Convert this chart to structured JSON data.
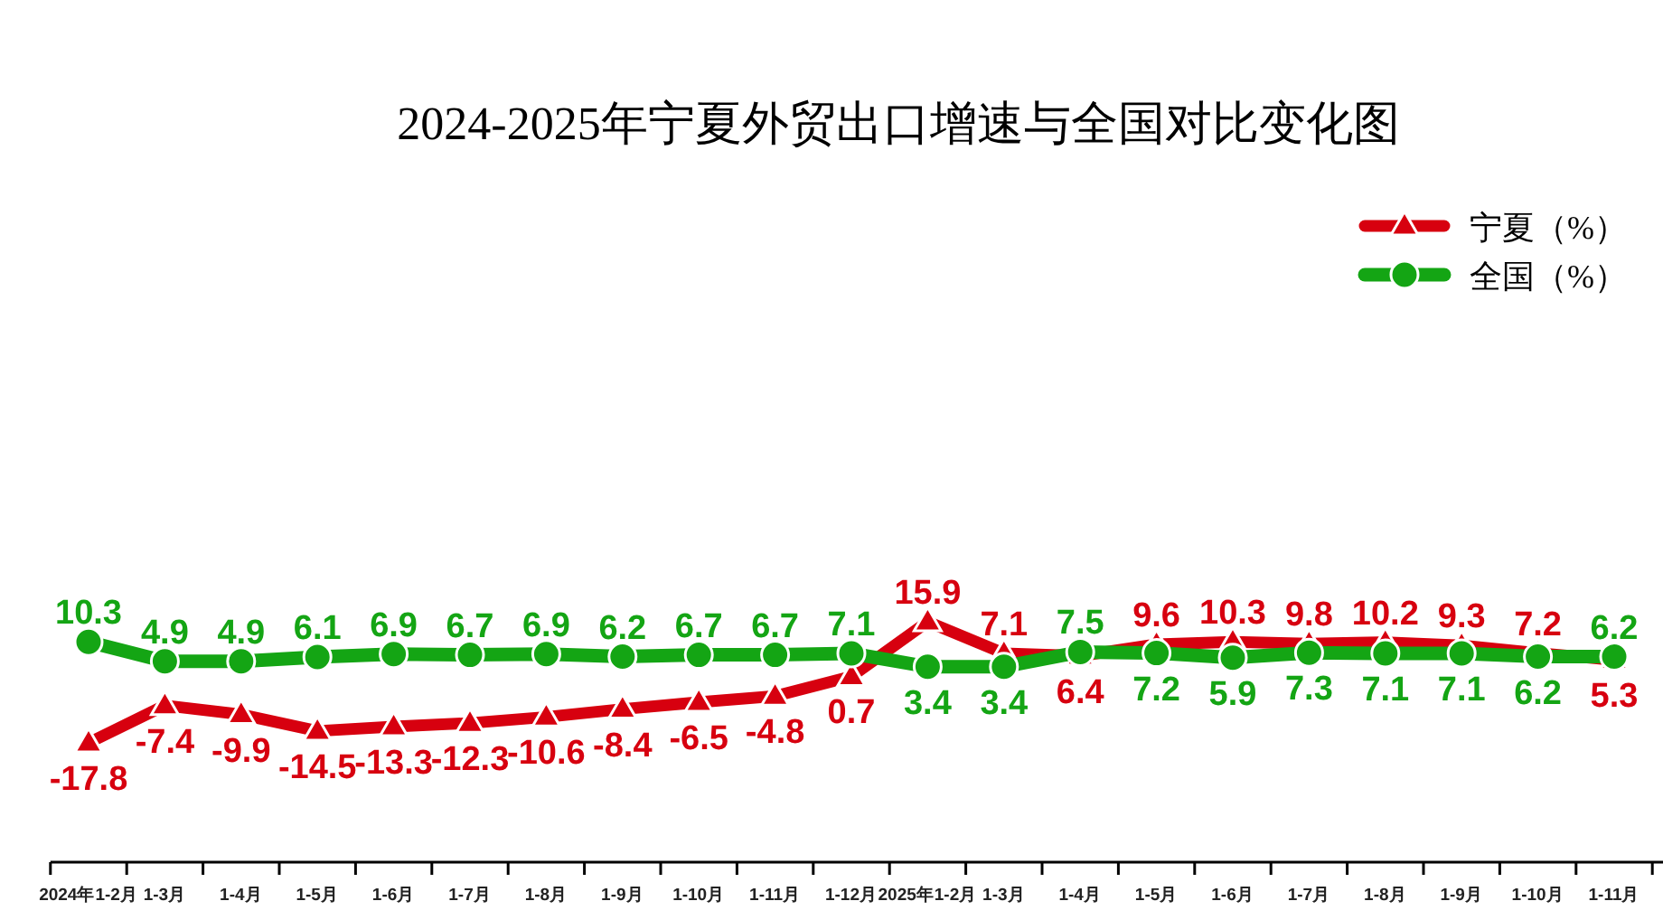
{
  "chart_data": {
    "type": "line",
    "title": "2024-2025年宁夏外贸出口增速与全国对比变化图",
    "categories": [
      "2024年1-2月",
      "1-3月",
      "1-4月",
      "1-5月",
      "1-6月",
      "1-7月",
      "1-8月",
      "1-9月",
      "1-10月",
      "1-11月",
      "1-12月",
      "2025年1-2月",
      "1-3月",
      "1-4月",
      "1-5月",
      "1-6月",
      "1-7月",
      "1-8月",
      "1-9月",
      "1-10月",
      "1-11月"
    ],
    "series": [
      {
        "name": "宁夏（%）",
        "color": "#d7000f",
        "marker": "triangle",
        "values": [
          -17.8,
          -7.4,
          -9.9,
          -14.5,
          -13.3,
          -12.3,
          -10.6,
          -8.4,
          -6.5,
          -4.8,
          0.7,
          15.9,
          7.1,
          6.4,
          9.6,
          10.3,
          9.8,
          10.2,
          9.3,
          7.2,
          5.3
        ]
      },
      {
        "name": "全国（%）",
        "color": "#14a514",
        "marker": "circle",
        "values": [
          10.3,
          4.9,
          4.9,
          6.1,
          6.9,
          6.7,
          6.9,
          6.2,
          6.7,
          6.7,
          7.1,
          3.4,
          3.4,
          7.5,
          7.2,
          5.9,
          7.3,
          7.1,
          7.1,
          6.2,
          6.2
        ]
      }
    ],
    "data_labels": true,
    "legend": "top right",
    "line_style": "solid"
  }
}
